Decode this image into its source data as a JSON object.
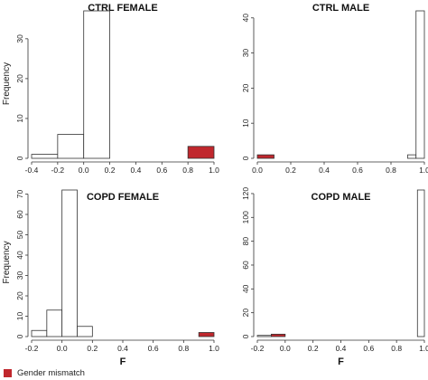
{
  "chart_data": [
    {
      "type": "bar",
      "title": "CTRL FEMALE",
      "xlabel": "",
      "ylabel": "Frequency",
      "xlim": [
        -0.4,
        1.0
      ],
      "ylim": [
        0,
        37
      ],
      "xticks": [
        "-0.4",
        "-0.2",
        "0.0",
        "0.2",
        "0.4",
        "0.6",
        "0.8",
        "1.0"
      ],
      "xtick_values": [
        -0.4,
        -0.2,
        0.0,
        0.2,
        0.4,
        0.6,
        0.8,
        1.0
      ],
      "yticks": [
        "0",
        "10",
        "20",
        "30"
      ],
      "ytick_values": [
        0,
        10,
        20,
        30
      ],
      "bins": [
        {
          "x0": -0.4,
          "x1": -0.2,
          "value": 1,
          "mismatch": false
        },
        {
          "x0": -0.2,
          "x1": 0.0,
          "value": 6,
          "mismatch": false
        },
        {
          "x0": 0.0,
          "x1": 0.2,
          "value": 37,
          "mismatch": false
        },
        {
          "x0": 0.8,
          "x1": 1.0,
          "value": 3,
          "mismatch": true
        }
      ]
    },
    {
      "type": "bar",
      "title": "CTRL MALE",
      "xlabel": "",
      "ylabel": "",
      "xlim": [
        0.0,
        1.0
      ],
      "ylim": [
        0,
        42
      ],
      "xticks": [
        "0.0",
        "0.2",
        "0.4",
        "0.6",
        "0.8",
        "1.0"
      ],
      "xtick_values": [
        0.0,
        0.2,
        0.4,
        0.6,
        0.8,
        1.0
      ],
      "yticks": [
        "0",
        "10",
        "20",
        "30",
        "40"
      ],
      "ytick_values": [
        0,
        10,
        20,
        30,
        40
      ],
      "bins": [
        {
          "x0": 0.0,
          "x1": 0.1,
          "value": 1,
          "mismatch": true
        },
        {
          "x0": 0.9,
          "x1": 0.95,
          "value": 1,
          "mismatch": false
        },
        {
          "x0": 0.95,
          "x1": 1.0,
          "value": 42,
          "mismatch": false
        }
      ]
    },
    {
      "type": "bar",
      "title": "COPD FEMALE",
      "xlabel": "F",
      "ylabel": "Frequency",
      "xlim": [
        -0.2,
        1.0
      ],
      "ylim": [
        0,
        72
      ],
      "xticks": [
        "-0.2",
        "0.0",
        "0.2",
        "0.4",
        "0.6",
        "0.8",
        "1.0"
      ],
      "xtick_values": [
        -0.2,
        0.0,
        0.2,
        0.4,
        0.6,
        0.8,
        1.0
      ],
      "yticks": [
        "0",
        "10",
        "20",
        "30",
        "40",
        "50",
        "60",
        "70"
      ],
      "ytick_values": [
        0,
        10,
        20,
        30,
        40,
        50,
        60,
        70
      ],
      "bins": [
        {
          "x0": -0.2,
          "x1": -0.1,
          "value": 3,
          "mismatch": false
        },
        {
          "x0": -0.1,
          "x1": 0.0,
          "value": 13,
          "mismatch": false
        },
        {
          "x0": 0.0,
          "x1": 0.1,
          "value": 72,
          "mismatch": false
        },
        {
          "x0": 0.1,
          "x1": 0.2,
          "value": 5,
          "mismatch": false
        },
        {
          "x0": 0.9,
          "x1": 1.0,
          "value": 2,
          "mismatch": true
        }
      ]
    },
    {
      "type": "bar",
      "title": "COPD MALE",
      "xlabel": "F",
      "ylabel": "",
      "xlim": [
        -0.2,
        1.0
      ],
      "ylim": [
        0,
        123
      ],
      "xticks": [
        "-0.2",
        "0.0",
        "0.2",
        "0.4",
        "0.6",
        "0.8",
        "1.0"
      ],
      "xtick_values": [
        -0.2,
        0.0,
        0.2,
        0.4,
        0.6,
        0.8,
        1.0
      ],
      "yticks": [
        "0",
        "20",
        "40",
        "60",
        "80",
        "100",
        "120"
      ],
      "ytick_values": [
        0,
        20,
        40,
        60,
        80,
        100,
        120
      ],
      "bins": [
        {
          "x0": -0.2,
          "x1": -0.1,
          "value": 1,
          "mismatch": false
        },
        {
          "x0": -0.1,
          "x1": 0.0,
          "value": 2,
          "mismatch": true
        },
        {
          "x0": 0.95,
          "x1": 1.0,
          "value": 123,
          "mismatch": false
        }
      ]
    }
  ],
  "legend": {
    "label": "Gender mismatch",
    "placement": "bottom-left"
  },
  "colors": {
    "mismatch": "#c0272d",
    "normal": "#ffffff",
    "axis": "#333333"
  }
}
